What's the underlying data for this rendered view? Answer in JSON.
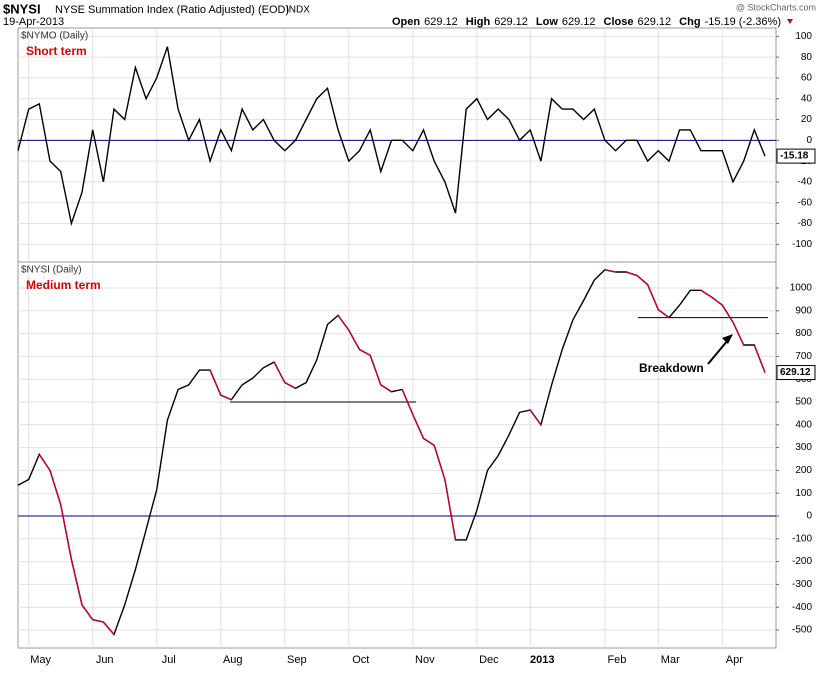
{
  "header": {
    "symbol": "$NYSI",
    "name": "NYSE Summation Index (Ratio Adjusted) (EOD)",
    "exchange": "INDX",
    "date": "19-Apr-2013",
    "quote": [
      {
        "label": "Open",
        "value": "629.12"
      },
      {
        "label": "High",
        "value": "629.12"
      },
      {
        "label": "Low",
        "value": "629.12"
      },
      {
        "label": "Close",
        "value": "629.12"
      },
      {
        "label": "Chg",
        "value": "-15.19 (-2.36%)"
      }
    ],
    "credit": "@ StockCharts.com"
  },
  "chart_data": [
    {
      "type": "line",
      "title": "$NYMO (Daily)",
      "subtitle": "Short term",
      "categories": [
        null,
        "May",
        null,
        null,
        null,
        null,
        null,
        "Jun",
        null,
        null,
        null,
        null,
        null,
        "Jul",
        null,
        null,
        null,
        null,
        null,
        "Aug",
        null,
        null,
        null,
        null,
        null,
        "Sep",
        null,
        null,
        null,
        null,
        null,
        "Oct",
        null,
        null,
        null,
        null,
        null,
        "Nov",
        null,
        null,
        null,
        null,
        null,
        "Dec",
        null,
        null,
        null,
        null,
        "2013",
        null,
        null,
        null,
        null,
        null,
        null,
        "Feb",
        null,
        null,
        null,
        null,
        "Mar",
        null,
        null,
        null,
        null,
        null,
        "Apr",
        null,
        null,
        null,
        null
      ],
      "series": [
        {
          "name": "$NYMO",
          "color": "#000000",
          "values": [
            -10,
            30,
            35,
            -20,
            -30,
            -80,
            -50,
            10,
            -40,
            30,
            20,
            70,
            40,
            60,
            90,
            30,
            0,
            20,
            -20,
            10,
            -10,
            30,
            10,
            20,
            0,
            -10,
            0,
            20,
            40,
            50,
            10,
            -20,
            -10,
            10,
            -30,
            0,
            0,
            -10,
            10,
            -20,
            -40,
            -70,
            30,
            40,
            20,
            30,
            20,
            0,
            10,
            -20,
            40,
            30,
            30,
            20,
            30,
            0,
            -10,
            0,
            0,
            -20,
            -10,
            -20,
            10,
            10,
            -10,
            -10,
            -10,
            -40,
            -20,
            10,
            -15.18
          ]
        }
      ],
      "ylim": [
        -117,
        108
      ],
      "yticks": [
        100,
        80,
        60,
        40,
        20,
        0,
        -20,
        -40,
        -60,
        -80,
        -100
      ],
      "grid": true,
      "zero_line_color": "#000080",
      "subtitle_color": "#dd0000"
    },
    {
      "type": "line",
      "title": "$NYSI (Daily)",
      "subtitle": "Medium term",
      "categories": [
        null,
        "May",
        null,
        null,
        null,
        null,
        null,
        "Jun",
        null,
        null,
        null,
        null,
        null,
        "Jul",
        null,
        null,
        null,
        null,
        null,
        "Aug",
        null,
        null,
        null,
        null,
        null,
        "Sep",
        null,
        null,
        null,
        null,
        null,
        "Oct",
        null,
        null,
        null,
        null,
        null,
        "Nov",
        null,
        null,
        null,
        null,
        null,
        "Dec",
        null,
        null,
        null,
        null,
        "2013",
        null,
        null,
        null,
        null,
        null,
        null,
        "Feb",
        null,
        null,
        null,
        null,
        "Mar",
        null,
        null,
        null,
        null,
        null,
        "Apr",
        null,
        null,
        null,
        null
      ],
      "series": [
        {
          "name": "$NYSI",
          "color": "#000000",
          "down_color": "#cc0033",
          "values": [
            135,
            160,
            270,
            200,
            50,
            -190,
            -390,
            -455,
            -465,
            -520,
            -390,
            -235,
            -60,
            115,
            420,
            555,
            575,
            640,
            640,
            530,
            510,
            575,
            605,
            650,
            675,
            585,
            560,
            585,
            685,
            840,
            880,
            815,
            730,
            705,
            575,
            545,
            555,
            445,
            340,
            310,
            160,
            -105,
            -105,
            25,
            200,
            265,
            355,
            455,
            465,
            400,
            575,
            730,
            860,
            945,
            1035,
            1080,
            1070,
            1070,
            1055,
            1015,
            905,
            870,
            925,
            990,
            990,
            960,
            925,
            850,
            750,
            750,
            629.12
          ]
        }
      ],
      "ylim": [
        -579,
        1114
      ],
      "yticks": [
        1000,
        900,
        800,
        700,
        600,
        500,
        400,
        300,
        200,
        100,
        0,
        -100,
        -200,
        -300,
        -400,
        -500
      ],
      "grid": true,
      "zero_line_color": "#000080",
      "subtitle_color": "#dd0000",
      "levels": [
        500,
        870
      ],
      "annotation": "Breakdown"
    }
  ]
}
